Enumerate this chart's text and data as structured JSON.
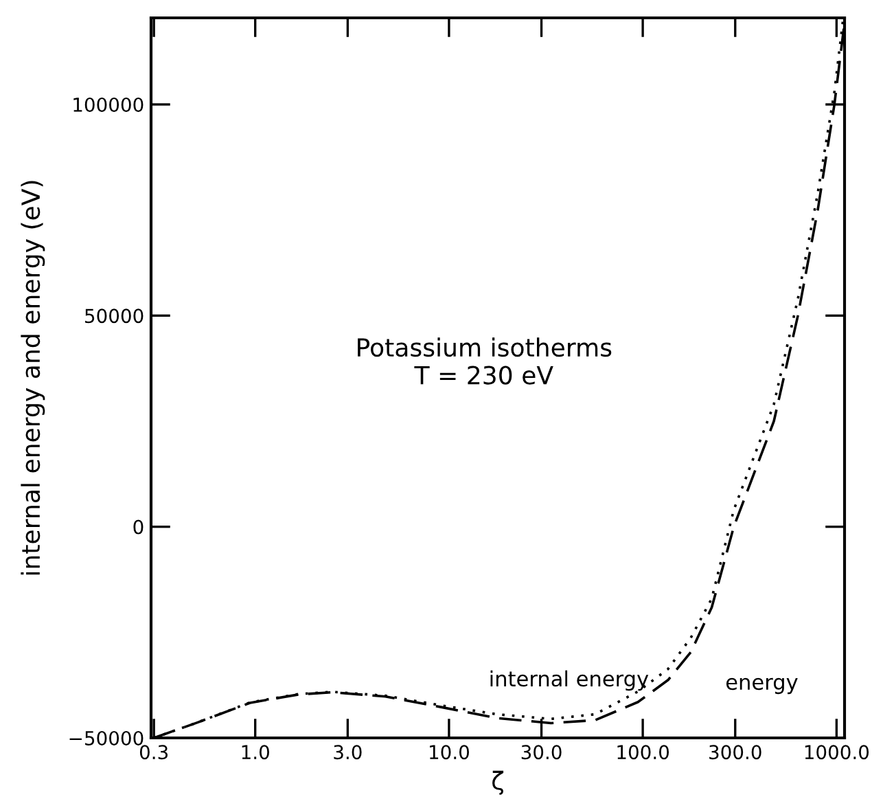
{
  "chart_data": {
    "type": "line",
    "xlabel": "ζ",
    "ylabel": "internal energy and energy (eV)",
    "annotations": [
      "Potassium isotherms\nT = 230 eV"
    ],
    "log": "x",
    "xlim": [
      0.29,
      1100
    ],
    "ylim": [
      -50000,
      120500
    ],
    "xticks": [
      0.3,
      {
        "value": 1,
        "label": "1.0"
      },
      {
        "value": 3,
        "label": "3.0"
      },
      {
        "value": 10,
        "label": "10.0"
      },
      {
        "value": 30,
        "label": "30.0"
      },
      {
        "value": 100,
        "label": "100.0"
      },
      {
        "value": 300,
        "label": "300.0"
      },
      {
        "value": 1000,
        "label": "1000.0"
      }
    ],
    "yticks": [
      -50000,
      0,
      50000,
      100000
    ],
    "grid": false,
    "legend": false,
    "marker": "none",
    "series": [
      {
        "name": "internal energy",
        "color": "#000000",
        "line_style": "dotted",
        "x": [
          0.3,
          0.5,
          0.94,
          1.68,
          2.5,
          4.7,
          9.1,
          17.6,
          33.6,
          56.8,
          94.5,
          135,
          177,
          227,
          295,
          475,
          632,
          800,
          975,
          1080
        ],
        "values": [
          -50000,
          -46400,
          -41600,
          -39600,
          -39100,
          -40000,
          -42300,
          -44400,
          -45500,
          -44400,
          -39000,
          -33700,
          -26300,
          -17000,
          4000,
          29000,
          54000,
          79000,
          103000,
          120000
        ]
      },
      {
        "name": "energy",
        "color": "#000000",
        "line_style": "dashed",
        "x": [
          0.3,
          0.5,
          0.94,
          1.68,
          2.5,
          4.7,
          9.1,
          17.6,
          33.6,
          56.8,
          94.5,
          135,
          177,
          227,
          295,
          475,
          632,
          800,
          975,
          1090
        ],
        "values": [
          -50000,
          -46400,
          -41700,
          -39700,
          -39200,
          -40200,
          -42700,
          -45300,
          -46500,
          -45800,
          -41500,
          -36300,
          -29700,
          -19100,
          0,
          25000,
          50000,
          75000,
          100000,
          118000
        ]
      }
    ]
  }
}
